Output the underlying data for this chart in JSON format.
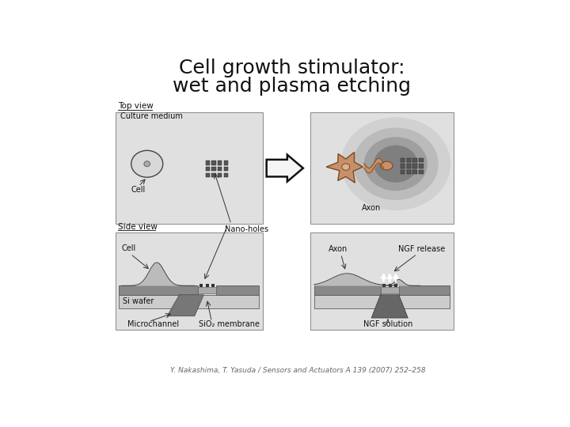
{
  "title_line1": "Cell growth stimulator:",
  "title_line2": "wet and plasma etching",
  "title_fontsize": 18,
  "citation": "Y. Nakashima, T. Yasuda / Sensors and Actuators A 139 (2007) 252–258",
  "citation_fontsize": 6.5,
  "bg_color": "#ffffff",
  "panel_color": "#e0e0e0",
  "label_top_view": "Top view",
  "label_side_view": "Side view",
  "label_culture": "Culture medium",
  "label_cell_top": "Cell",
  "label_nano": "Nano-holes",
  "label_cell_side": "Cell",
  "label_si_wafer": "Si wafer",
  "label_micro": "Microchannel",
  "label_sio2": "SiO₂ membrane",
  "label_axon_top": "Axon",
  "label_axon_side": "Axon",
  "label_ngf_release": "NGF release",
  "label_ngf_sol": "NGF solution"
}
